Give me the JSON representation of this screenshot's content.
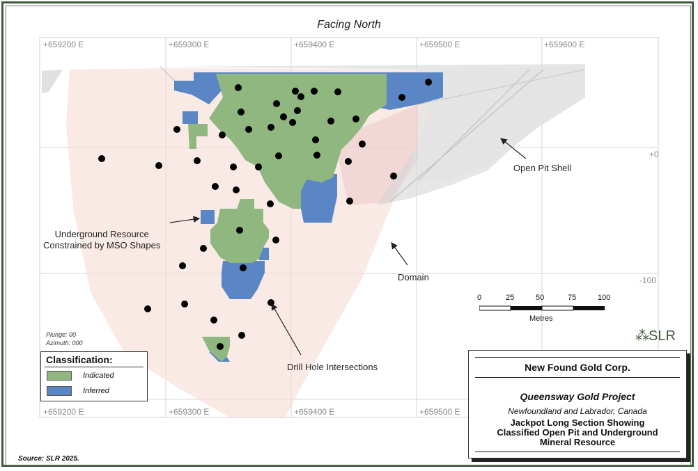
{
  "view_title": "Facing North",
  "easting_labels_top": [
    "+659200 E",
    "+659300 E",
    "+659400 E",
    "+659500 E",
    "+659600 E"
  ],
  "easting_labels_bottom": [
    "+659200 E",
    "+659300 E",
    "+659400 E",
    "+659500 E"
  ],
  "elevation_labels": [
    "+0",
    "-100"
  ],
  "callouts": {
    "underground": "Underground Resource\nConstrained by MSO Shapes",
    "open_pit": "Open Pit Shell",
    "domain": "Domain",
    "drill_holes": "Drill Hole Intersections"
  },
  "orientation": {
    "plunge": "Plunge: 00",
    "azimuth": "Azimuth: 000"
  },
  "legend": {
    "title": "Classification:",
    "items": [
      {
        "label": "Indicated",
        "color": "#8fb77f"
      },
      {
        "label": "Inferred",
        "color": "#5b86c6"
      }
    ]
  },
  "scale_bar": {
    "ticks": [
      "0",
      "25",
      "50",
      "75",
      "100"
    ],
    "unit": "Metres"
  },
  "logo_text": "SLR",
  "title_block": {
    "company": "New Found Gold Corp.",
    "project": "Queensway Gold Project",
    "location": "Newfoundland and Labrador, Canada",
    "description": "Jackpot Long Section Showing\nClassified Open Pit and Underground\nMineral Resource"
  },
  "source": "Source: SLR 2025.",
  "colors": {
    "indicated": "#8fb77f",
    "inferred": "#5b86c6",
    "domain": "#f6dcd6",
    "pit_shell": "#d6d6d6",
    "frame": "#3f5b3a"
  }
}
